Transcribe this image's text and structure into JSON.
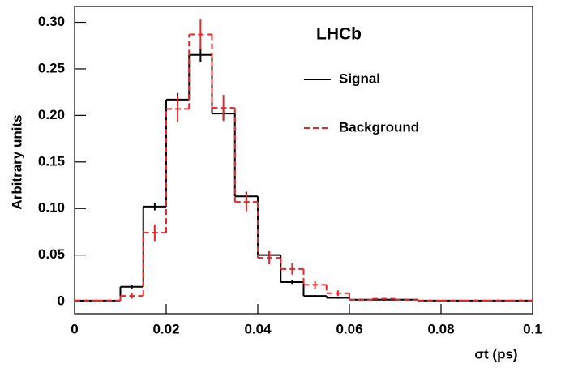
{
  "chart_data": {
    "type": "histogram",
    "annotation": "LHCb",
    "xlabel": "σt (ps)",
    "ylabel": "Arbitrary units",
    "bins": [
      0,
      0.005,
      0.01,
      0.015,
      0.02,
      0.025,
      0.03,
      0.035,
      0.04,
      0.045,
      0.05,
      0.055,
      0.06,
      0.065,
      0.07,
      0.075,
      0.08,
      0.085,
      0.09,
      0.095,
      0.1
    ],
    "series": [
      {
        "name": "Signal",
        "color": "#000000",
        "linestyle": "solid",
        "values": [
          0.001,
          0.001,
          0.016,
          0.102,
          0.217,
          0.265,
          0.202,
          0.113,
          0.05,
          0.021,
          0.006,
          0.004,
          0.002,
          0.002,
          0.002,
          0.001,
          0.001,
          0.001,
          0.001,
          0.001
        ],
        "errors": [
          0.001,
          0.001,
          0.002,
          0.004,
          0.007,
          0.008,
          0.007,
          0.005,
          0.004,
          0.002,
          0.001,
          0.001,
          0.001,
          0.001,
          0.001,
          0.001,
          0.001,
          0.001,
          0.001,
          0.001
        ]
      },
      {
        "name": "Background",
        "color": "#e8262a",
        "linestyle": "dashed",
        "values": [
          0.001,
          0.001,
          0.006,
          0.074,
          0.207,
          0.287,
          0.208,
          0.107,
          0.047,
          0.035,
          0.018,
          0.009,
          0.002,
          0.003,
          0.002,
          0.001,
          0.001,
          0.001,
          0.001,
          0.001
        ],
        "errors": [
          0.001,
          0.001,
          0.003,
          0.009,
          0.014,
          0.016,
          0.014,
          0.01,
          0.007,
          0.006,
          0.004,
          0.003,
          0.001,
          0.001,
          0.001,
          0.001,
          0.001,
          0.001,
          0.001,
          0.001
        ]
      }
    ],
    "xlim": [
      0,
      0.1
    ],
    "ylim": [
      -0.013,
      0.317
    ],
    "xticks": [
      0,
      0.02,
      0.04,
      0.06,
      0.08,
      0.1
    ],
    "yticks": [
      0,
      0.05,
      {
        "value": 0.1,
        "label": "0.10"
      },
      0.15,
      {
        "value": 0.2,
        "label": "0.20"
      },
      0.25,
      {
        "value": 0.3,
        "label": "0.30"
      }
    ]
  }
}
